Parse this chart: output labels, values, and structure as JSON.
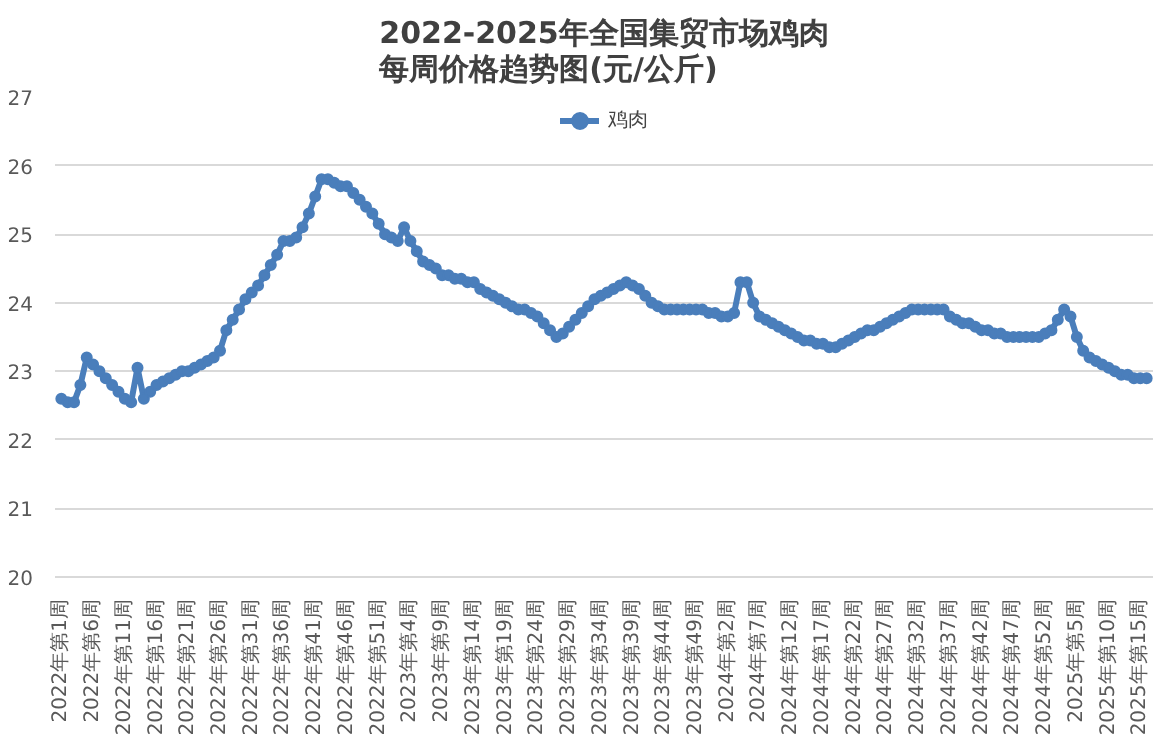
{
  "chart_data": {
    "type": "line",
    "title": "2022-2025年全国集贸市场鸡肉",
    "subtitle": "每周价格趋势图(元/公斤)",
    "categories": [
      "2022年第1周",
      null,
      null,
      null,
      null,
      "2022年第6周",
      null,
      null,
      null,
      null,
      "2022年第11周",
      null,
      null,
      null,
      null,
      "2022年第16周",
      null,
      null,
      null,
      null,
      "2022年第21周",
      null,
      null,
      null,
      null,
      "2022年第26周",
      null,
      null,
      null,
      null,
      "2022年第31周",
      null,
      null,
      null,
      null,
      "2022年第36周",
      null,
      null,
      null,
      null,
      "2022年第41周",
      null,
      null,
      null,
      null,
      "2022年第46周",
      null,
      null,
      null,
      null,
      "2022年第51周",
      null,
      null,
      null,
      null,
      "2023年第4周",
      null,
      null,
      null,
      null,
      "2023年第9周",
      null,
      null,
      null,
      null,
      "2023年第14周",
      null,
      null,
      null,
      null,
      "2023年第19周",
      null,
      null,
      null,
      null,
      "2023年第24周",
      null,
      null,
      null,
      null,
      "2023年第29周",
      null,
      null,
      null,
      null,
      "2023年第34周",
      null,
      null,
      null,
      null,
      "2023年第39周",
      null,
      null,
      null,
      null,
      "2023年第44周",
      null,
      null,
      null,
      null,
      "2023年第49周",
      null,
      null,
      null,
      null,
      "2024年第2周",
      null,
      null,
      null,
      null,
      "2024年第7周",
      null,
      null,
      null,
      null,
      "2024年第12周",
      null,
      null,
      null,
      null,
      "2024年第17周",
      null,
      null,
      null,
      null,
      "2024年第22周",
      null,
      null,
      null,
      null,
      "2024年第27周",
      null,
      null,
      null,
      null,
      "2024年第32周",
      null,
      null,
      null,
      null,
      "2024年第37周",
      null,
      null,
      null,
      null,
      "2024年第42周",
      null,
      null,
      null,
      null,
      "2024年第47周",
      null,
      null,
      null,
      null,
      "2024年第52周",
      null,
      null,
      null,
      null,
      "2025年第5周",
      null,
      null,
      null,
      null,
      "2025年第10周",
      null,
      null,
      null,
      null,
      "2025年第15周",
      null
    ],
    "series": [
      {
        "name": "鸡肉",
        "color": "#4a7ebb",
        "values": [
          22.6,
          22.55,
          22.55,
          22.8,
          23.2,
          23.1,
          23.0,
          22.9,
          22.8,
          22.7,
          22.6,
          22.55,
          23.05,
          22.6,
          22.7,
          22.8,
          22.85,
          22.9,
          22.95,
          23.0,
          23.0,
          23.05,
          23.1,
          23.15,
          23.2,
          23.3,
          23.6,
          23.75,
          23.9,
          24.05,
          24.15,
          24.25,
          24.4,
          24.55,
          24.7,
          24.9,
          24.9,
          24.95,
          25.1,
          25.3,
          25.55,
          25.8,
          25.8,
          25.75,
          25.7,
          25.7,
          25.6,
          25.5,
          25.4,
          25.3,
          25.15,
          25.0,
          24.95,
          24.9,
          25.1,
          24.9,
          24.75,
          24.6,
          24.55,
          24.5,
          24.4,
          24.4,
          24.35,
          24.35,
          24.3,
          24.3,
          24.2,
          24.15,
          24.1,
          24.05,
          24.0,
          23.95,
          23.9,
          23.9,
          23.85,
          23.8,
          23.7,
          23.6,
          23.5,
          23.55,
          23.65,
          23.75,
          23.85,
          23.95,
          24.05,
          24.1,
          24.15,
          24.2,
          24.25,
          24.3,
          24.25,
          24.2,
          24.1,
          24.0,
          23.95,
          23.9,
          23.9,
          23.9,
          23.9,
          23.9,
          23.9,
          23.9,
          23.85,
          23.85,
          23.8,
          23.8,
          23.85,
          24.3,
          24.3,
          24.0,
          23.8,
          23.75,
          23.7,
          23.65,
          23.6,
          23.55,
          23.5,
          23.45,
          23.45,
          23.4,
          23.4,
          23.35,
          23.35,
          23.4,
          23.45,
          23.5,
          23.55,
          23.6,
          23.6,
          23.65,
          23.7,
          23.75,
          23.8,
          23.85,
          23.9,
          23.9,
          23.9,
          23.9,
          23.9,
          23.9,
          23.8,
          23.75,
          23.7,
          23.7,
          23.65,
          23.6,
          23.6,
          23.55,
          23.55,
          23.5,
          23.5,
          23.5,
          23.5,
          23.5,
          23.5,
          23.55,
          23.6,
          23.75,
          23.9,
          23.8,
          23.5,
          23.3,
          23.2,
          23.15,
          23.1,
          23.05,
          23.0,
          22.95,
          22.95,
          22.9,
          22.9,
          22.9
        ]
      }
    ],
    "ylim": [
      20,
      27
    ],
    "yticks": [
      20,
      21,
      22,
      23,
      24,
      25,
      26,
      27
    ],
    "grid": "y",
    "legend": "top",
    "marker": "circle",
    "line_style": "solid"
  }
}
